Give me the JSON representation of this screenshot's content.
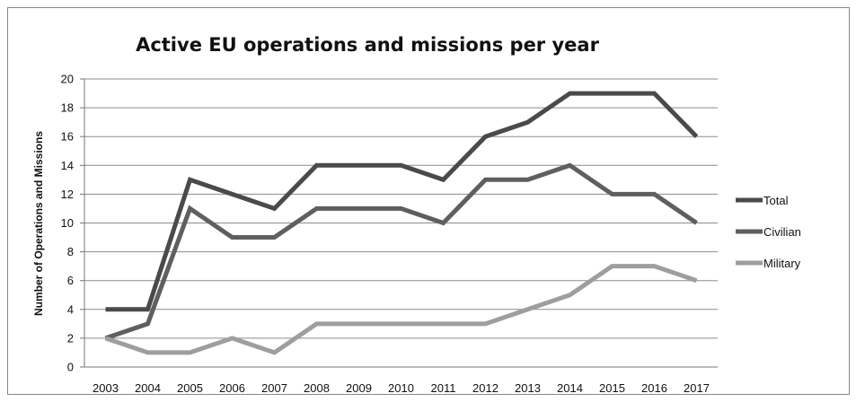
{
  "chart_data": {
    "type": "line",
    "title": "Active EU operations and missions per year",
    "xlabel": "",
    "ylabel": "Number of Operations and Missions",
    "categories": [
      "2003",
      "2004",
      "2005",
      "2006",
      "2007",
      "2008",
      "2009",
      "2010",
      "2011",
      "2012",
      "2013",
      "2014",
      "2015",
      "2016",
      "2017"
    ],
    "ylim": [
      0,
      20
    ],
    "yticks": [
      0,
      2,
      4,
      6,
      8,
      10,
      12,
      14,
      16,
      18,
      20
    ],
    "grid": true,
    "legend_position": "right",
    "series": [
      {
        "name": "Total",
        "color": "#4a4a4a",
        "values": [
          4,
          4,
          13,
          12,
          11,
          14,
          14,
          14,
          13,
          16,
          17,
          19,
          19,
          19,
          16
        ]
      },
      {
        "name": "Civilian",
        "color": "#5f5f5f",
        "values": [
          2,
          3,
          11,
          9,
          9,
          11,
          11,
          11,
          10,
          13,
          13,
          14,
          12,
          12,
          10
        ]
      },
      {
        "name": "Military",
        "color": "#9e9e9e",
        "values": [
          2,
          1,
          1,
          2,
          1,
          3,
          3,
          3,
          3,
          3,
          4,
          5,
          7,
          7,
          6
        ]
      }
    ]
  }
}
